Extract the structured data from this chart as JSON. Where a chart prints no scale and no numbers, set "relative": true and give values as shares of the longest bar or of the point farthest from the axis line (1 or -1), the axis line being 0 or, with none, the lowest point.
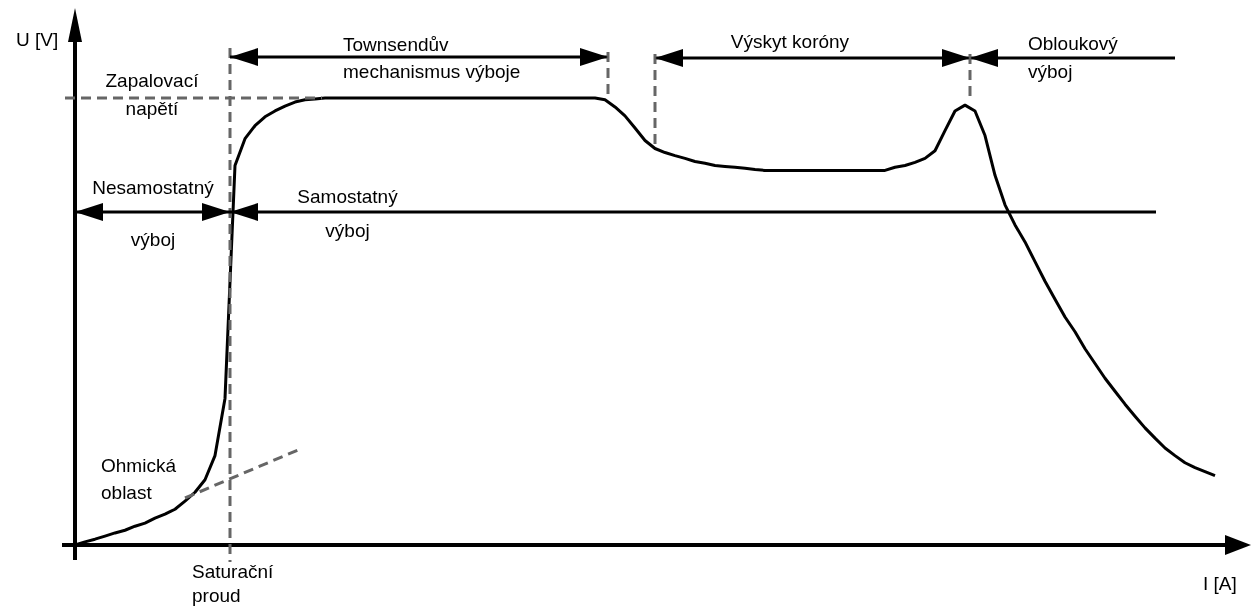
{
  "chart_data": {
    "type": "line",
    "relative": true,
    "marker": "none",
    "ref_lines": [
      {
        "axis": "y",
        "value": 1,
        "label": "Zapalovací napětí",
        "color": "#666666",
        "line_style": "dashed"
      }
    ],
    "xlabel": "I [A]",
    "ylabel": "U [V]",
    "categories": [
      null,
      null,
      null,
      null,
      null,
      null,
      null,
      null,
      null,
      null,
      null,
      null,
      null,
      null,
      null,
      null,
      null,
      null,
      null,
      null,
      null,
      null,
      null,
      null,
      null,
      null,
      null,
      null,
      null,
      null,
      null,
      null,
      null,
      null,
      null,
      null,
      null,
      null,
      null,
      null,
      null,
      null,
      null,
      null,
      null,
      null,
      null,
      null,
      null,
      null,
      null,
      null,
      null,
      null,
      null,
      null,
      null,
      null,
      null,
      null,
      null,
      null,
      null,
      null,
      null,
      null,
      null,
      null,
      null,
      null,
      null,
      null,
      null,
      null,
      null,
      null,
      null,
      null,
      null,
      null,
      null,
      null,
      null,
      null,
      null,
      null,
      null,
      null,
      null,
      null,
      null,
      null,
      null,
      null,
      null,
      null,
      null,
      null,
      null,
      null,
      null,
      null,
      null,
      null,
      null,
      null,
      null,
      null,
      null,
      null,
      null,
      null,
      null,
      null,
      null
    ],
    "series": [
      {
        "color": "#000000",
        "values": [
          0,
          0.007,
          0.013,
          0.02,
          0.027,
          0.033,
          0.042,
          0.049,
          0.06,
          0.069,
          0.08,
          0.098,
          0.118,
          0.146,
          0.2,
          0.328,
          0.849,
          0.909,
          0.938,
          0.958,
          0.971,
          0.982,
          0.991,
          0.996,
          0.998,
          1,
          1,
          1,
          1,
          1,
          1,
          1,
          1,
          1,
          1,
          1,
          1,
          1,
          1,
          1,
          1,
          1,
          1,
          1,
          1,
          1,
          1,
          1,
          1,
          1,
          1,
          1,
          1,
          0.996,
          0.98,
          0.96,
          0.933,
          0.905,
          0.887,
          0.878,
          0.871,
          0.865,
          0.858,
          0.854,
          0.849,
          0.847,
          0.845,
          0.843,
          0.84,
          0.838,
          0.838,
          0.838,
          0.838,
          0.838,
          0.838,
          0.838,
          0.838,
          0.838,
          0.838,
          0.838,
          0.838,
          0.838,
          0.845,
          0.849,
          0.856,
          0.865,
          0.882,
          0.927,
          0.971,
          0.984,
          0.971,
          0.916,
          0.827,
          0.761,
          0.716,
          0.678,
          0.634,
          0.59,
          0.55,
          0.51,
          0.477,
          0.439,
          0.406,
          0.373,
          0.344,
          0.315,
          0.288,
          0.262,
          0.239,
          0.217,
          0.2,
          0.184,
          0.173,
          0.164,
          0.155
        ]
      }
    ],
    "annotations": [
      "Townsendův mechanismus výboje",
      "Výskyt koróny",
      "Obloukový výboj",
      "Nesamostatný výboj",
      "Samostatný výboj",
      "Ohmická oblast",
      "Saturační proud"
    ]
  }
}
